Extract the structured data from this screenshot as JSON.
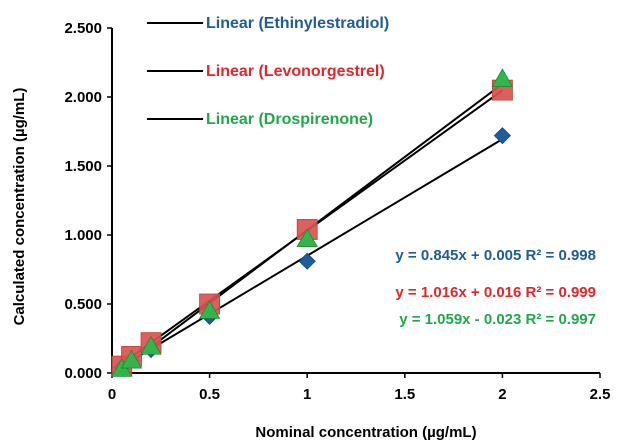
{
  "chart_data": {
    "type": "scatter",
    "xlabel": "Nominal concentration (µg/mL)",
    "ylabel": "Calculated concentration (µg/mL)",
    "xlim": [
      0,
      2.5
    ],
    "ylim": [
      0,
      2.5
    ],
    "x_ticks": [
      "0",
      "0.5",
      "1",
      "1.5",
      "2",
      "2.5"
    ],
    "y_ticks": [
      "0.000",
      "0.500",
      "1.000",
      "1.500",
      "2.000",
      "2.500"
    ],
    "grid": false,
    "legend_position": "top-left",
    "series": [
      {
        "name": "Ethinylestradiol",
        "color": "#1F5C99",
        "marker": "diamond",
        "x": [
          0.05,
          0.1,
          0.2,
          0.5,
          1,
          2
        ],
        "y": [
          0.04,
          0.09,
          0.17,
          0.41,
          0.81,
          1.72
        ],
        "trendline_label": "Linear (Ethinylestradiol)",
        "trendline_color": "#1F5C99",
        "slope": 0.845,
        "intercept": 0.005,
        "equation": "y = 0.845x + 0.005 R² = 0.998"
      },
      {
        "name": "Levonorgestrel",
        "color": "#D9534F",
        "marker": "square",
        "x": [
          0.05,
          0.1,
          0.2,
          0.5,
          1,
          2
        ],
        "y": [
          0.05,
          0.12,
          0.22,
          0.5,
          1.04,
          2.05
        ],
        "trendline_label": "Linear (Levonorgestrel)",
        "trendline_color": "#E3262A",
        "slope": 1.016,
        "intercept": 0.016,
        "equation": "y = 1.016x + 0.016  R² = 0.999"
      },
      {
        "name": "Drospirenone",
        "color": "#33B54A",
        "marker": "triangle",
        "x": [
          0.05,
          0.1,
          0.2,
          0.5,
          1,
          2
        ],
        "y": [
          0.03,
          0.09,
          0.19,
          0.45,
          0.97,
          2.13
        ],
        "trendline_label": "Linear (Drospirenone)",
        "trendline_color": "#22A84A",
        "slope": 1.059,
        "intercept": -0.023,
        "equation": "y = 1.059x - 0.023 R² = 0.997"
      }
    ]
  }
}
